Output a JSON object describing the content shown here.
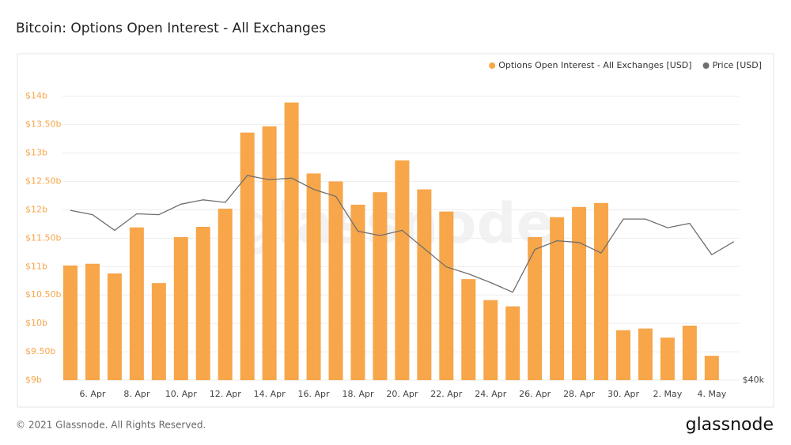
{
  "chart_data": {
    "type": "bar-line",
    "title": "Bitcoin: Options Open Interest - All Exchanges",
    "watermark": "glassnode",
    "categories": [
      null,
      "6. Apr",
      null,
      "8. Apr",
      null,
      "10. Apr",
      null,
      "12. Apr",
      null,
      "14. Apr",
      null,
      "16. Apr",
      null,
      "18. Apr",
      null,
      "20. Apr",
      null,
      "22. Apr",
      null,
      "24. Apr",
      null,
      "26. Apr",
      null,
      "28. Apr",
      null,
      "30. Apr",
      null,
      "2. May",
      null,
      "4. May",
      null
    ],
    "series": [
      {
        "name": "Options Open Interest - All Exchanges [USD]",
        "color": "#f7a64a",
        "values": [
          11.02,
          11.05,
          10.88,
          11.69,
          10.71,
          11.52,
          11.7,
          12.02,
          13.36,
          13.47,
          13.89,
          12.64,
          12.5,
          12.09,
          12.31,
          12.87,
          12.36,
          11.97,
          10.78,
          10.41,
          10.3,
          11.52,
          11.87,
          12.05,
          12.12,
          9.88,
          9.91,
          9.75,
          9.96,
          9.43,
          null
        ]
      },
      {
        "name": "Price [USD]",
        "color": "#6f6f6f",
        "axis": "y2",
        "values": [
          59500,
          59000,
          57200,
          59100,
          59000,
          60200,
          60700,
          60400,
          63500,
          63000,
          63200,
          61900,
          61100,
          57100,
          56600,
          57200,
          55100,
          53000,
          52200,
          51200,
          50100,
          55000,
          56000,
          55800,
          54600,
          58500,
          58500,
          57500,
          58000,
          54400,
          55900
        ]
      }
    ],
    "ylim": [
      9,
      14.4
    ],
    "yticks": [
      {
        "value": 9,
        "label": "$9b"
      },
      {
        "value": 9.5,
        "label": "$9.50b"
      },
      {
        "value": 10,
        "label": "$10b"
      },
      {
        "value": 10.5,
        "label": "$10.50b"
      },
      {
        "value": 11,
        "label": "$11b"
      },
      {
        "value": 11.5,
        "label": "$11.50b"
      },
      {
        "value": 12,
        "label": "$12b"
      },
      {
        "value": 12.5,
        "label": "$12.50b"
      },
      {
        "value": 13,
        "label": "$13b"
      },
      {
        "value": 13.5,
        "label": "$13.50b"
      },
      {
        "value": 14,
        "label": "$14b"
      }
    ],
    "y2lim": [
      40000,
      75200
    ],
    "y2ticks": [
      {
        "value": 40000,
        "label": "$40k"
      }
    ],
    "grid": true,
    "legend": "top-right"
  },
  "footer": "© 2021 Glassnode. All Rights Reserved.",
  "logo": "glassnode"
}
